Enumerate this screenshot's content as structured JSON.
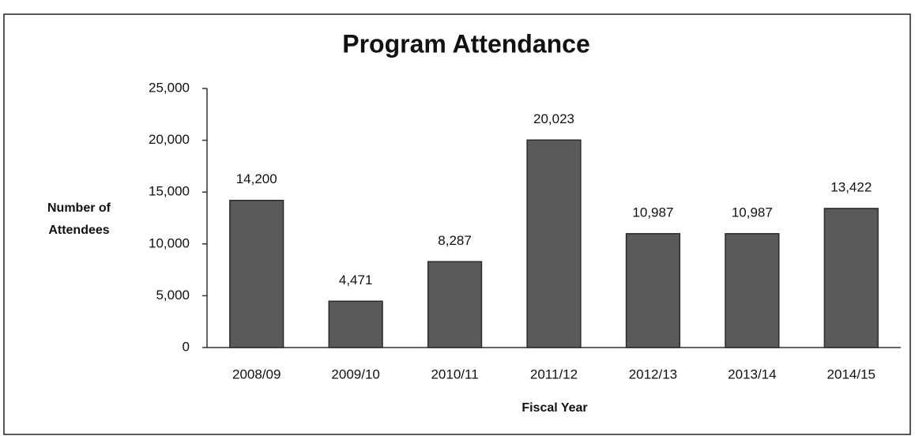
{
  "chart_data": {
    "type": "bar",
    "title": "Program Attendance",
    "x_label": "Fiscal Year",
    "y_label": "Number of Attendees",
    "categories": [
      "2008/09",
      "2009/10",
      "2010/11",
      "2011/12",
      "2012/13",
      "2013/14",
      "2014/15"
    ],
    "values": [
      14200,
      4471,
      8287,
      20023,
      10987,
      10987,
      13422
    ],
    "value_labels": [
      "14,200",
      "4,471",
      "8,287",
      "20,023",
      "10,987",
      "10,987",
      "13,422"
    ],
    "color": "#5a5a5a",
    "ylim": [
      0,
      25000
    ],
    "yticks": [
      0,
      {
        "value": 5000,
        "label": "5,000"
      },
      {
        "value": 10000,
        "label": "10,000"
      },
      {
        "value": 15000,
        "label": "15,000"
      },
      {
        "value": 20000,
        "label": "20,000"
      },
      {
        "value": 25000,
        "label": "25,000"
      }
    ],
    "grid": false
  }
}
